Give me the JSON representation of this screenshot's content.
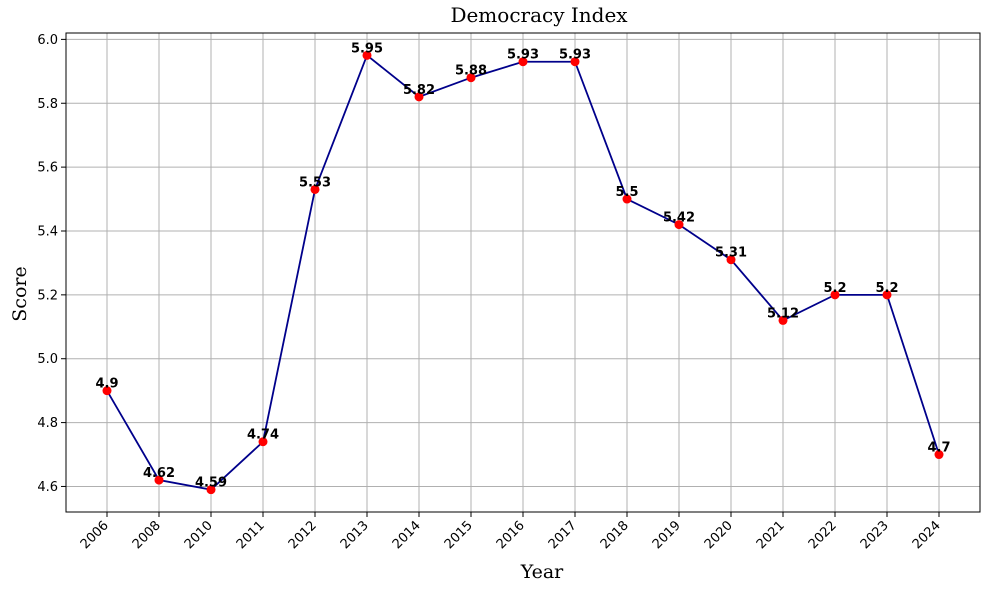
{
  "chart_data": {
    "type": "line",
    "title": "Democracy Index",
    "xlabel": "Year",
    "ylabel": "Score",
    "categories": [
      "2006",
      "2008",
      "2010",
      "2011",
      "2012",
      "2013",
      "2014",
      "2015",
      "2016",
      "2017",
      "2018",
      "2019",
      "2020",
      "2021",
      "2022",
      "2023",
      "2024"
    ],
    "series": [
      {
        "values": [
          4.9,
          4.62,
          4.59,
          4.74,
          5.53,
          5.95,
          5.82,
          5.88,
          5.93,
          5.93,
          5.5,
          5.42,
          5.31,
          5.12,
          5.2,
          5.2,
          4.7
        ],
        "labels": [
          "4.9",
          "4.62",
          "4.59",
          "4.74",
          "5.53",
          "5.95",
          "5.82",
          "5.88",
          "5.93",
          "5.93",
          "5.5",
          "5.42",
          "5.31",
          "5.12",
          "5.2",
          "5.2",
          "4.7"
        ],
        "line_color": "#00008b",
        "marker_color": "#ff0000"
      }
    ],
    "ylim": [
      4.52,
      6.02
    ],
    "yticks": [
      4.6,
      4.8,
      5.0,
      5.2,
      5.4,
      5.6,
      5.8,
      6.0
    ],
    "ytick_labels": [
      "4.6",
      "4.8",
      "5.0",
      "5.2",
      "5.4",
      "5.6",
      "5.8",
      "6.0"
    ],
    "grid": true,
    "legend": "none"
  }
}
